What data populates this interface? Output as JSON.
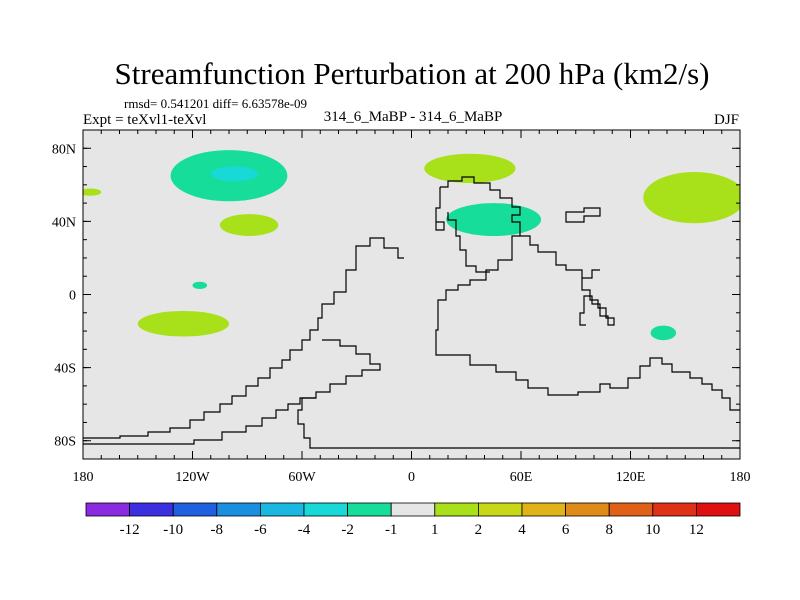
{
  "chart_data": {
    "type": "heatmap",
    "title": "Streamfunction Perturbation at 200 hPa (km2/s)",
    "stats": "rmsd= 0.541201 diff= 6.63578e-09",
    "left_label": "Expt = teXvl1-teXvl",
    "center_label": "314_6_MaBP - 314_6_MaBP",
    "right_label": "DJF",
    "x_ticks": [
      {
        "value": -180,
        "label": "180"
      },
      {
        "value": -120,
        "label": "120W"
      },
      {
        "value": -60,
        "label": "60W"
      },
      {
        "value": 0,
        "label": "0"
      },
      {
        "value": 60,
        "label": "60E"
      },
      {
        "value": 120,
        "label": "120E"
      },
      {
        "value": 180,
        "label": "180"
      }
    ],
    "y_ticks": [
      {
        "value": 80,
        "label": "80N"
      },
      {
        "value": 40,
        "label": "40N"
      },
      {
        "value": 0,
        "label": "0"
      },
      {
        "value": -40,
        "label": "40S"
      },
      {
        "value": -80,
        "label": "80S"
      }
    ],
    "xlim": [
      -180,
      180
    ],
    "ylim": [
      -90,
      90
    ],
    "colorbar": {
      "colors": [
        "#8a2be2",
        "#3b2fe0",
        "#1f5fe0",
        "#1a8fe0",
        "#1ab8e0",
        "#18d8d8",
        "#16de9a",
        "#e6e6e6",
        "#a8e01a",
        "#c8d818",
        "#e0b418",
        "#e08a18",
        "#e06018",
        "#e03018",
        "#e01010"
      ],
      "labels": [
        "-12",
        "-10",
        "-8",
        "-6",
        "-4",
        "-2",
        "-1",
        "1",
        "2",
        "4",
        "6",
        "8",
        "10",
        "12"
      ]
    },
    "regions": [
      {
        "name": "nh-pacific-low",
        "level": -1,
        "color": "#16de9a",
        "lon": -100,
        "lat": 65,
        "rlon": 32,
        "rlat": 14
      },
      {
        "name": "nh-pacific-core",
        "level": -2,
        "color": "#18d8d8",
        "lon": -97,
        "lat": 66,
        "rlon": 13,
        "rlat": 4
      },
      {
        "name": "north-pacific-ridge",
        "level": 1,
        "color": "#a8e01a",
        "lon": -89,
        "lat": 38,
        "rlon": 16,
        "rlat": 6
      },
      {
        "name": "east-pacific-ridge",
        "level": 1,
        "color": "#a8e01a",
        "lon": -176,
        "lat": 56,
        "rlon": 6,
        "rlat": 2
      },
      {
        "name": "equatorial-low",
        "level": -1,
        "color": "#16de9a",
        "lon": -116,
        "lat": 5,
        "rlon": 4,
        "rlat": 2
      },
      {
        "name": "south-pacific-ridge",
        "level": 1,
        "color": "#a8e01a",
        "lon": -125,
        "lat": -16,
        "rlon": 25,
        "rlat": 7
      },
      {
        "name": "europe-ridge",
        "level": 1,
        "color": "#a8e01a",
        "lon": 32,
        "lat": 69,
        "rlon": 25,
        "rlat": 8
      },
      {
        "name": "central-asia-low",
        "level": -1,
        "color": "#16de9a",
        "lon": 45,
        "lat": 41,
        "rlon": 26,
        "rlat": 9
      },
      {
        "name": "north-pacific-east-ridge",
        "level": 1,
        "color": "#a8e01a",
        "lon": 155,
        "lat": 53,
        "rlon": 28,
        "rlat": 14
      },
      {
        "name": "indian-ocean-low",
        "level": -1,
        "color": "#16de9a",
        "lon": 138,
        "lat": -21,
        "rlon": 7,
        "rlat": 4
      }
    ]
  }
}
